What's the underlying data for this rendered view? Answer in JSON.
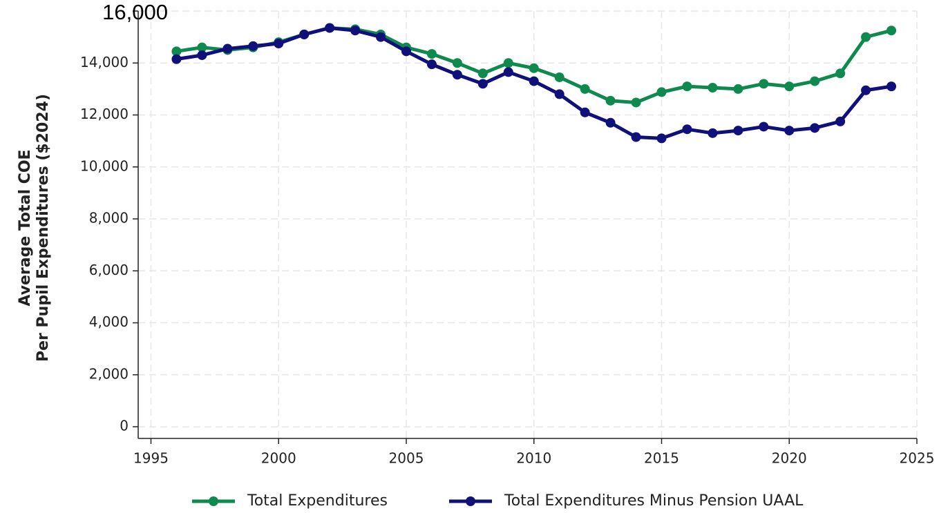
{
  "chart_data": {
    "type": "line",
    "y_label": [
      "Average Total COE",
      "Per Pupil Expenditures ($2024)"
    ],
    "x": [
      1996,
      1997,
      1998,
      1999,
      2000,
      2001,
      2002,
      2003,
      2004,
      2005,
      2006,
      2007,
      2008,
      2009,
      2010,
      2011,
      2012,
      2013,
      2014,
      2015,
      2016,
      2017,
      2018,
      2019,
      2020,
      2021,
      2022,
      2023,
      2024
    ],
    "series": [
      {
        "name": "Total Expenditures",
        "color": "#0f8a4f",
        "values": [
          14450,
          14600,
          14500,
          14600,
          14800,
          15100,
          15350,
          15300,
          15100,
          14600,
          14350,
          14000,
          13600,
          14000,
          13800,
          13450,
          13000,
          12550,
          12480,
          12880,
          13100,
          13050,
          13000,
          13200,
          13100,
          13300,
          13600,
          15000,
          15250
        ]
      },
      {
        "name": "Total Expenditures Minus Pension UAAL",
        "color": "#10107a",
        "values": [
          14150,
          14300,
          14550,
          14650,
          14750,
          15100,
          15350,
          15250,
          15000,
          14450,
          13950,
          13550,
          13200,
          13650,
          13300,
          12800,
          12100,
          11700,
          11150,
          11100,
          11450,
          11300,
          11400,
          11550,
          11400,
          11500,
          11750,
          12950,
          13100
        ]
      }
    ],
    "xlim": [
      1994.5,
      2025
    ],
    "xticks": [
      1995,
      2000,
      2005,
      2010,
      2015,
      2020,
      2025
    ],
    "ylim": [
      -450,
      16000
    ],
    "yticks": [
      0,
      {
        "value": 2000,
        "label": "2,000"
      },
      {
        "value": 4000,
        "label": "4,000"
      },
      {
        "value": 6000,
        "label": "6,000"
      },
      {
        "value": 8000,
        "label": "8,000"
      },
      {
        "value": 10000,
        "label": "10,000"
      },
      {
        "value": 12000,
        "label": "12,000"
      },
      {
        "value": 14000,
        "label": "14,000"
      },
      {
        "value": 16000,
        "label": "16,000"
      }
    ],
    "grid": true,
    "legend": "bottom"
  }
}
